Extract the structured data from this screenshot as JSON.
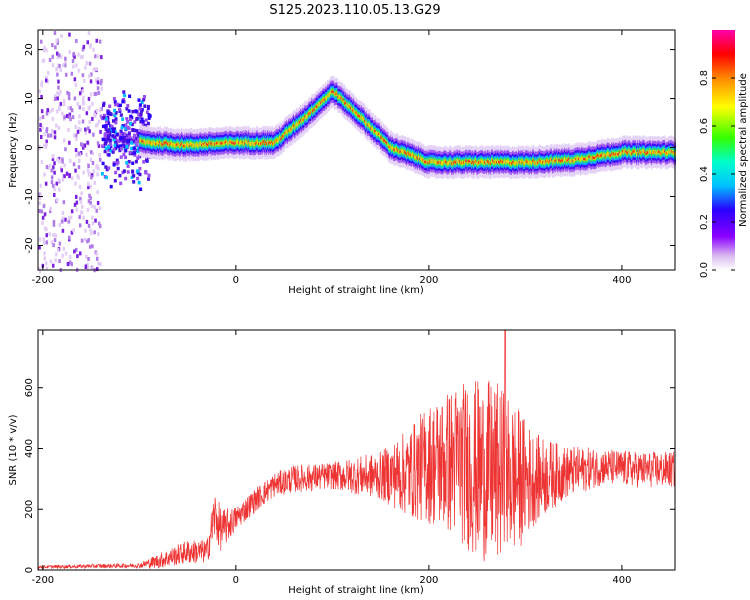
{
  "title": "S125.2023.110.05.13.G29",
  "colors": {
    "snr_line": "#ee3333",
    "frame": "#000000"
  },
  "chart_data": [
    {
      "type": "heatmap",
      "title": "S125.2023.110.05.13.G29",
      "xlabel": "Height of straight line (km)",
      "ylabel": "Frequency (Hz)",
      "xlim": [
        -205,
        455
      ],
      "ylim": [
        -25,
        24
      ],
      "x_ticks": [
        -200,
        0,
        200,
        400
      ],
      "y_ticks": [
        -20,
        -10,
        0,
        10,
        20
      ],
      "colorbar": {
        "label": "Normalized spectral amplitude",
        "range": [
          0,
          1
        ],
        "ticks": [
          "0.0",
          "0.2",
          "0.4",
          "0.6",
          "0.8"
        ],
        "colormap": "rainbow (white-violet-blue-cyan-green-yellow-orange-red-magenta)"
      },
      "ridge": {
        "x": [
          -110,
          -90,
          -50,
          0,
          40,
          70,
          100,
          130,
          160,
          200,
          250,
          300,
          350,
          400,
          455
        ],
        "freq": [
          1.5,
          1,
          0.5,
          1,
          1,
          6,
          11.5,
          6,
          0,
          -3,
          -3,
          -3,
          -2.5,
          -1,
          -1
        ]
      },
      "noise_band_x": [
        -205,
        -140
      ]
    },
    {
      "type": "line",
      "xlabel": "Height of straight line (km)",
      "ylabel": "SNR (10 * v/v)",
      "xlim": [
        -205,
        455
      ],
      "ylim": [
        0,
        790
      ],
      "x_ticks": [
        -200,
        0,
        200,
        400
      ],
      "y_ticks": [
        0,
        200,
        400,
        600
      ],
      "envelope": {
        "x": [
          -205,
          -100,
          -80,
          -50,
          -30,
          -22,
          -15,
          0,
          20,
          40,
          60,
          100,
          150,
          180,
          200,
          230,
          250,
          270,
          290,
          310,
          340,
          380,
          420,
          455
        ],
        "mean": [
          10,
          15,
          30,
          60,
          60,
          180,
          130,
          170,
          230,
          280,
          300,
          310,
          310,
          320,
          350,
          360,
          330,
          320,
          300,
          300,
          320,
          340,
          330,
          330
        ],
        "amplitude": [
          5,
          8,
          25,
          40,
          40,
          90,
          70,
          40,
          40,
          40,
          45,
          45,
          80,
          150,
          200,
          260,
          300,
          300,
          250,
          150,
          90,
          60,
          60,
          60
        ]
      },
      "peak_value": 790,
      "peak_x": 279
    }
  ]
}
